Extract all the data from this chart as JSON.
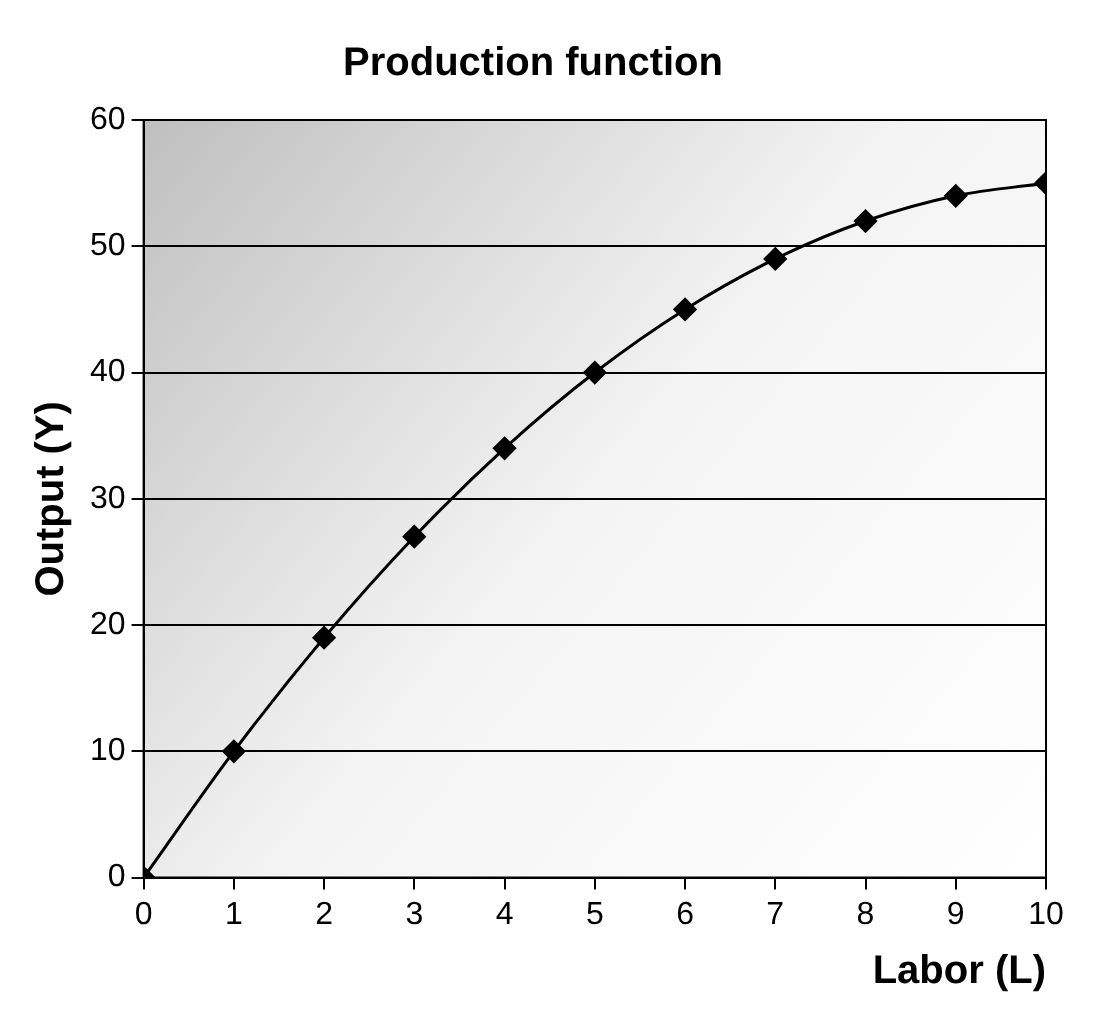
{
  "chart_data": {
    "type": "line",
    "title": "Production function",
    "xlabel": "Labor (L)",
    "ylabel": "Output (Y)",
    "x": [
      0,
      1,
      2,
      3,
      4,
      5,
      6,
      7,
      8,
      9,
      10
    ],
    "series": [
      {
        "color": "#000000",
        "values": [
          0,
          10,
          19,
          27,
          34,
          40,
          45,
          49,
          52,
          54,
          55
        ]
      }
    ],
    "xlim": [
      0,
      10
    ],
    "xticks": [
      0,
      1,
      2,
      3,
      4,
      5,
      6,
      7,
      8,
      9,
      10
    ],
    "ylim": [
      0,
      60
    ],
    "yticks": [
      0,
      10,
      20,
      30,
      40,
      50,
      60
    ],
    "grid": "y",
    "legend": false,
    "marker": "diamond",
    "line_style": "solid"
  }
}
